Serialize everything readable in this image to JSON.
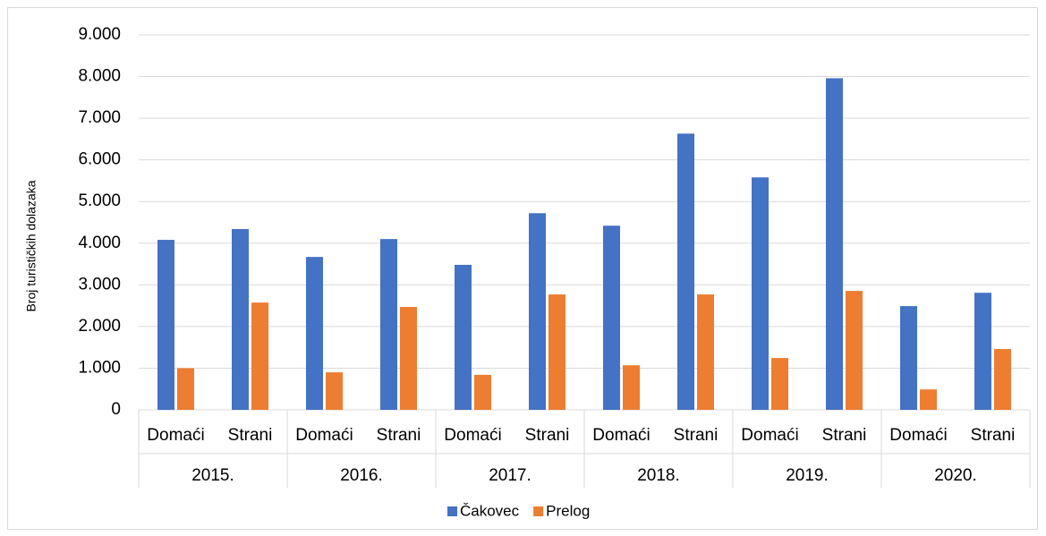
{
  "chart_data": {
    "type": "bar",
    "y_label": "Broj turističkih dolazaka",
    "categories": [
      "Domaći",
      "Strani",
      "Domaći",
      "Strani",
      "Domaći",
      "Strani",
      "Domaći",
      "Strani",
      "Domaći",
      "Strani",
      "Domaći",
      "Strani"
    ],
    "groups": [
      "2015.",
      "2016.",
      "2017.",
      "2018.",
      "2019.",
      "2020."
    ],
    "series": [
      {
        "name": "Čakovec",
        "color": "#4472c4",
        "values": [
          4080,
          4340,
          3670,
          4100,
          3480,
          4720,
          4420,
          6630,
          5580,
          7960,
          2490,
          2810
        ]
      },
      {
        "name": "Prelog",
        "color": "#ed7d31",
        "values": [
          1000,
          2575,
          900,
          2470,
          840,
          2770,
          1070,
          2770,
          1245,
          2855,
          490,
          1460
        ]
      }
    ],
    "ylim": [
      0,
      9000
    ],
    "yticks": [
      0,
      {
        "value": 1000,
        "label": "1.000"
      },
      {
        "value": 2000,
        "label": "2.000"
      },
      {
        "value": 3000,
        "label": "3.000"
      },
      {
        "value": 4000,
        "label": "4.000"
      },
      {
        "value": 5000,
        "label": "5.000"
      },
      {
        "value": 6000,
        "label": "6.000"
      },
      {
        "value": 7000,
        "label": "7.000"
      },
      {
        "value": 8000,
        "label": "8.000"
      },
      {
        "value": 9000,
        "label": "9.000"
      }
    ],
    "grid": true,
    "legend": "bottom"
  }
}
